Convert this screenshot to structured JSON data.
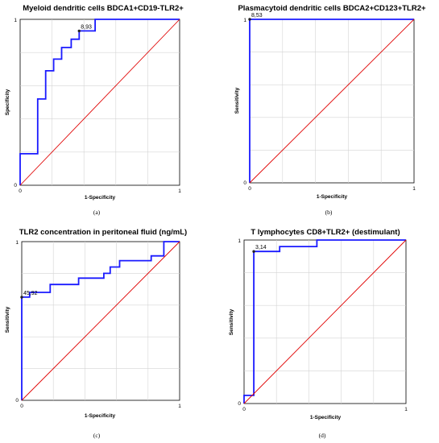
{
  "chart_data": [
    {
      "type": "line",
      "title": "Myeloid dendritic cells BDCA1+CD19-TLR2+",
      "xlabel": "1-Specificity",
      "ylabel": "Specificity",
      "xlim": [
        0,
        1
      ],
      "ylim": [
        0,
        1
      ],
      "x_ticks": [
        "0",
        "1"
      ],
      "y_ticks": [
        "0",
        "1"
      ],
      "caption": "(a)",
      "grid": true,
      "series": [
        {
          "role": "roc",
          "color": "#1a1aff",
          "x": [
            0,
            0,
            0.11,
            0.11,
            0.16,
            0.16,
            0.21,
            0.21,
            0.26,
            0.26,
            0.32,
            0.32,
            0.37,
            0.37,
            0.47,
            0.47,
            1
          ],
          "y": [
            0,
            0.19,
            0.19,
            0.52,
            0.52,
            0.69,
            0.69,
            0.76,
            0.76,
            0.83,
            0.83,
            0.88,
            0.88,
            0.93,
            0.93,
            1,
            1
          ]
        },
        {
          "role": "reference",
          "color": "#e00000",
          "x": [
            0,
            1
          ],
          "y": [
            0,
            1
          ]
        }
      ],
      "annotation": {
        "text": "8,93",
        "x": 0.37,
        "y": 0.93
      }
    },
    {
      "type": "line",
      "title": "Plasmacytoid dendritic cells BDCA2+CD123+TLR2+",
      "xlabel": "1-Specificity",
      "ylabel": "Sensitivity",
      "xlim": [
        0,
        1
      ],
      "ylim": [
        0,
        1
      ],
      "x_ticks": [
        "0",
        "1"
      ],
      "y_ticks": [
        "0",
        "1"
      ],
      "caption": "(b)",
      "grid": true,
      "series": [
        {
          "role": "roc",
          "color": "#1a1aff",
          "x": [
            0,
            0,
            1
          ],
          "y": [
            0,
            1,
            1
          ]
        },
        {
          "role": "reference",
          "color": "#e00000",
          "x": [
            0,
            1
          ],
          "y": [
            0,
            1
          ]
        }
      ],
      "annotation": {
        "text": "8,53",
        "x": 0,
        "y": 1
      }
    },
    {
      "type": "line",
      "title": "TLR2 concentration in peritoneal fluid (ng/mL)",
      "xlabel": "1-Specificity",
      "ylabel": "Sensitivity",
      "xlim": [
        0,
        1
      ],
      "ylim": [
        0,
        1
      ],
      "x_ticks": [
        "0",
        "1"
      ],
      "y_ticks": [
        "0",
        "1"
      ],
      "caption": "(c)",
      "grid": true,
      "series": [
        {
          "role": "roc",
          "color": "#1a1aff",
          "x": [
            0,
            0,
            0.05,
            0.05,
            0.18,
            0.18,
            0.36,
            0.36,
            0.52,
            0.52,
            0.56,
            0.56,
            0.62,
            0.62,
            0.82,
            0.82,
            0.9,
            0.9,
            1
          ],
          "y": [
            0,
            0.65,
            0.65,
            0.68,
            0.68,
            0.73,
            0.73,
            0.77,
            0.77,
            0.8,
            0.8,
            0.84,
            0.84,
            0.88,
            0.88,
            0.91,
            0.91,
            1,
            1
          ]
        },
        {
          "role": "reference",
          "color": "#e00000",
          "x": [
            0,
            1
          ],
          "y": [
            0,
            1
          ]
        }
      ],
      "annotation": {
        "text": "45,92",
        "x": 0,
        "y": 0.65
      }
    },
    {
      "type": "line",
      "title": "T lymphocytes CD8+TLR2+ (destimulant)",
      "xlabel": "1-Specificity",
      "ylabel": "Sensitivity",
      "xlim": [
        0,
        1
      ],
      "ylim": [
        0,
        1
      ],
      "x_ticks": [
        "0",
        "1"
      ],
      "y_ticks": [
        "0",
        "1"
      ],
      "caption": "(d)",
      "grid": true,
      "series": [
        {
          "role": "roc",
          "color": "#1a1aff",
          "x": [
            0,
            0,
            0.06,
            0.06,
            0.22,
            0.22,
            0.45,
            0.45,
            1
          ],
          "y": [
            0,
            0.05,
            0.05,
            0.93,
            0.93,
            0.96,
            0.96,
            1,
            1
          ]
        },
        {
          "role": "reference",
          "color": "#e00000",
          "x": [
            0,
            1
          ],
          "y": [
            0,
            1
          ]
        }
      ],
      "annotation": {
        "text": "3,14",
        "x": 0.06,
        "y": 0.93
      }
    }
  ]
}
